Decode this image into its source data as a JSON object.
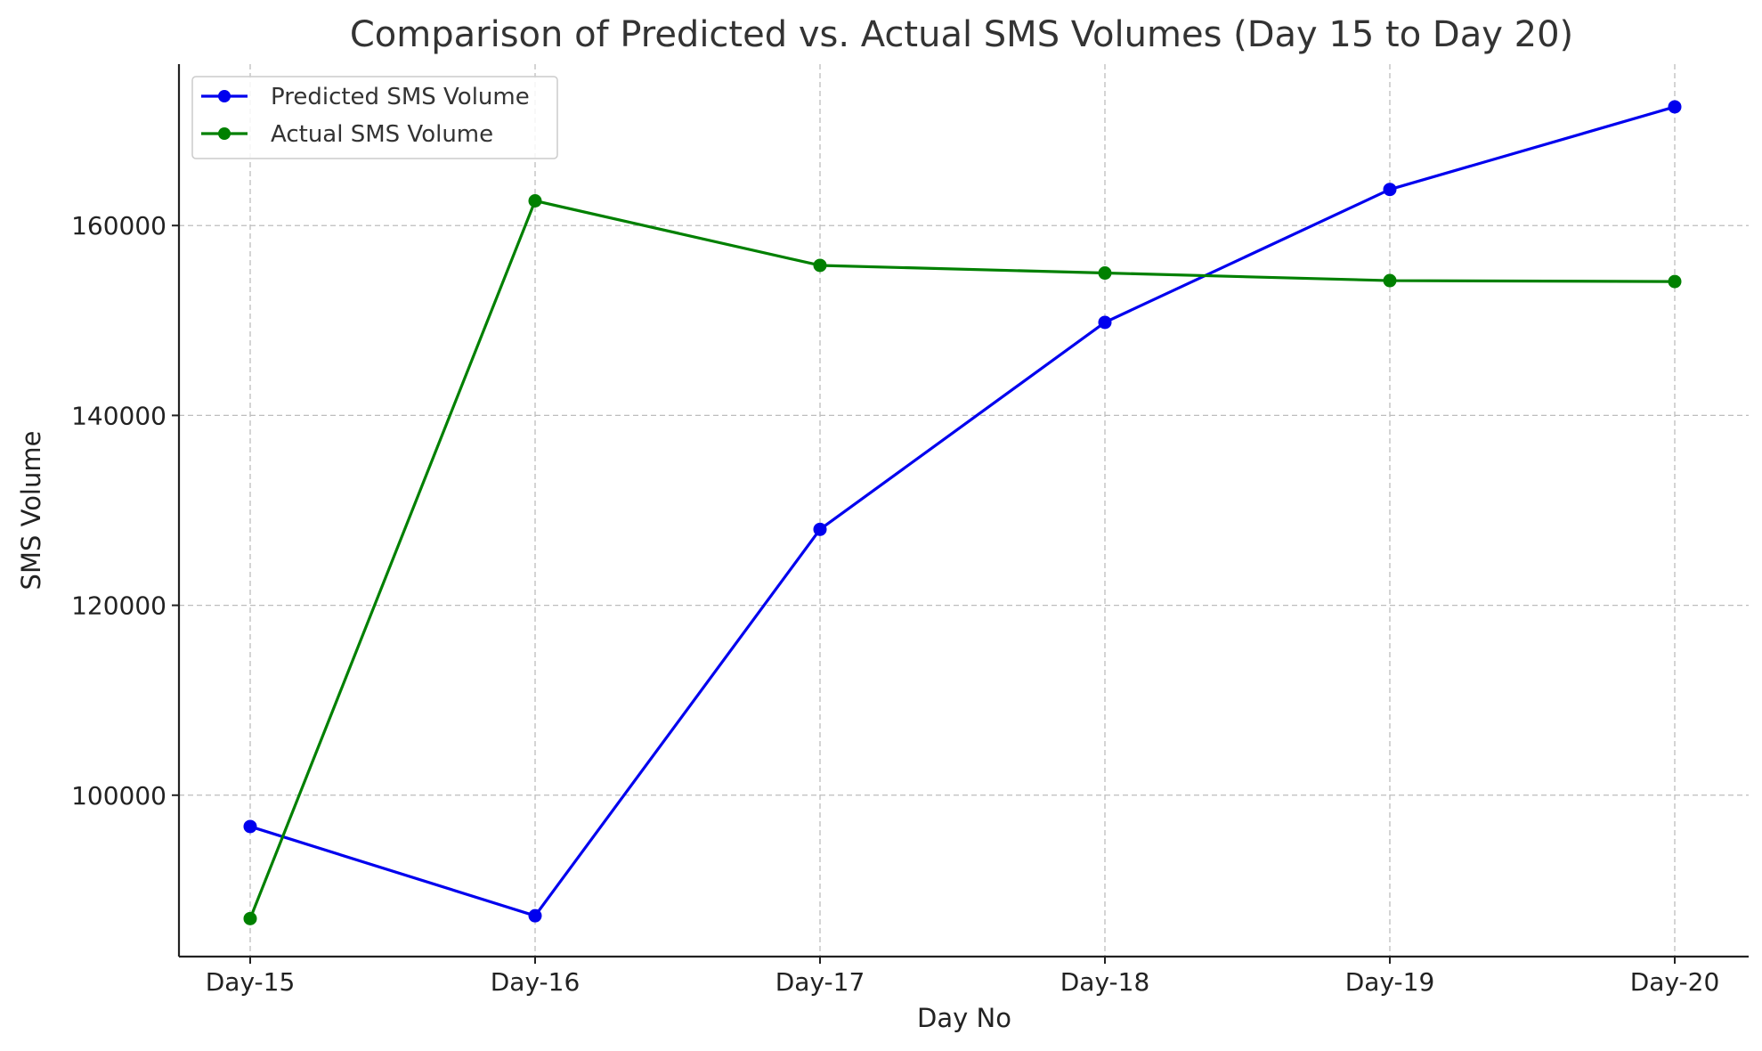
{
  "chart_data": {
    "type": "line",
    "title": "Comparison of Predicted vs. Actual SMS Volumes (Day 15 to Day 20)",
    "xlabel": "Day No",
    "ylabel": "SMS Volume",
    "categories": [
      "Day-15",
      "Day-16",
      "Day-17",
      "Day-18",
      "Day-19",
      "Day-20"
    ],
    "ylim": [
      83000,
      177000
    ],
    "yticks": [
      100000,
      120000,
      140000,
      160000
    ],
    "grid": true,
    "legend_position": "top-left",
    "series": [
      {
        "name": "Predicted SMS Volume",
        "color": "#0000ee",
        "marker": "circle",
        "values": [
          96700,
          87300,
          128000,
          149800,
          163800,
          172500
        ]
      },
      {
        "name": "Actual SMS Volume",
        "color": "#008000",
        "marker": "circle",
        "values": [
          87000,
          162600,
          155800,
          155000,
          154200,
          154100
        ]
      }
    ]
  }
}
